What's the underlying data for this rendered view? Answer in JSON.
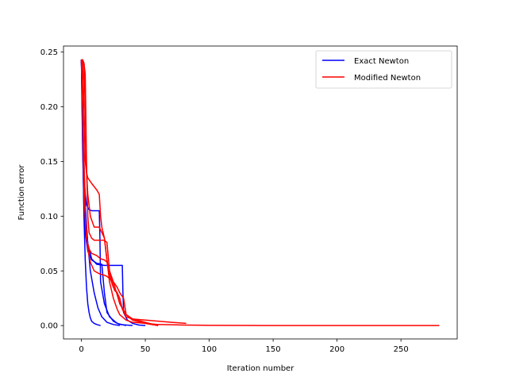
{
  "chart_data": {
    "type": "line",
    "title": "",
    "xlabel": "Iteration number",
    "ylabel": "Function error",
    "xlim": [
      -14,
      294
    ],
    "ylim": [
      -0.0122,
      0.2555
    ],
    "xticks": [
      0,
      50,
      100,
      150,
      200,
      250
    ],
    "yticks": [
      0.0,
      0.05,
      0.1,
      0.15,
      0.2,
      0.25
    ],
    "xtick_labels": [
      "0",
      "50",
      "100",
      "150",
      "200",
      "250"
    ],
    "ytick_labels": [
      "0.00",
      "0.05",
      "0.10",
      "0.15",
      "0.20",
      "0.25"
    ],
    "grid": false,
    "legend": {
      "position": "top-right",
      "entries": [
        {
          "name": "Exact Newton",
          "color": "#0000ff"
        },
        {
          "name": "Modified Newton",
          "color": "#ff0000"
        }
      ]
    },
    "series": [
      {
        "group": "Exact Newton",
        "color": "#0000ff",
        "x": [
          0,
          1,
          2,
          3,
          4,
          5,
          6,
          7,
          8,
          10,
          12,
          15
        ],
        "y": [
          0.243,
          0.17,
          0.1,
          0.06,
          0.035,
          0.02,
          0.012,
          0.007,
          0.004,
          0.002,
          0.001,
          0.0
        ]
      },
      {
        "group": "Exact Newton",
        "color": "#0000ff",
        "x": [
          0,
          1,
          2,
          3,
          5,
          7,
          10,
          13,
          16,
          20,
          25,
          30
        ],
        "y": [
          0.243,
          0.2,
          0.15,
          0.11,
          0.075,
          0.05,
          0.03,
          0.016,
          0.008,
          0.003,
          0.001,
          0.0
        ]
      },
      {
        "group": "Exact Newton",
        "color": "#0000ff",
        "x": [
          0,
          1,
          2,
          3,
          4,
          6,
          8,
          10,
          12,
          14,
          14.5,
          15,
          18,
          22,
          28,
          35
        ],
        "y": [
          0.243,
          0.18,
          0.14,
          0.12,
          0.11,
          0.106,
          0.105,
          0.105,
          0.105,
          0.105,
          0.08,
          0.04,
          0.02,
          0.008,
          0.002,
          0.0
        ]
      },
      {
        "group": "Exact Newton",
        "color": "#0000ff",
        "x": [
          0,
          1,
          2,
          3,
          5,
          8,
          12,
          18,
          25,
          32,
          32.5,
          33,
          36,
          40,
          45,
          50
        ],
        "y": [
          0.243,
          0.19,
          0.14,
          0.1,
          0.075,
          0.061,
          0.056,
          0.055,
          0.055,
          0.055,
          0.03,
          0.012,
          0.005,
          0.002,
          0.0005,
          0.0
        ]
      },
      {
        "group": "Exact Newton",
        "color": "#0000ff",
        "x": [
          0,
          1,
          2,
          3,
          5,
          8,
          12,
          16,
          18,
          20,
          25,
          30,
          40
        ],
        "y": [
          0.243,
          0.16,
          0.11,
          0.085,
          0.068,
          0.06,
          0.057,
          0.056,
          0.03,
          0.012,
          0.004,
          0.001,
          0.0
        ]
      },
      {
        "group": "Modified Newton",
        "color": "#ff0000",
        "x": [
          0,
          1,
          2,
          3,
          4,
          5,
          8,
          10,
          12,
          14,
          15,
          16,
          18,
          20,
          22,
          25,
          28,
          30,
          33,
          35,
          40,
          50,
          60,
          80,
          100,
          150,
          200,
          250,
          280
        ],
        "y": [
          0.243,
          0.242,
          0.2,
          0.15,
          0.14,
          0.135,
          0.13,
          0.127,
          0.124,
          0.12,
          0.1,
          0.09,
          0.08,
          0.06,
          0.04,
          0.025,
          0.015,
          0.01,
          0.007,
          0.005,
          0.003,
          0.002,
          0.001,
          0.0005,
          0.0002,
          0.0,
          0.0,
          0.0,
          0.0
        ]
      },
      {
        "group": "Modified Newton",
        "color": "#ff0000",
        "x": [
          0,
          1,
          2,
          3,
          4,
          5,
          7,
          10,
          14,
          16,
          18,
          20,
          22,
          25,
          28,
          30,
          35,
          40,
          50,
          60
        ],
        "y": [
          0.243,
          0.243,
          0.24,
          0.2,
          0.14,
          0.12,
          0.1,
          0.09,
          0.09,
          0.085,
          0.08,
          0.06,
          0.045,
          0.035,
          0.03,
          0.02,
          0.01,
          0.006,
          0.003,
          0.0
        ]
      },
      {
        "group": "Modified Newton",
        "color": "#ff0000",
        "x": [
          0,
          1,
          2,
          3,
          4,
          5,
          6,
          8,
          10,
          12,
          15,
          18,
          20,
          22,
          25,
          28,
          30,
          33,
          35,
          40,
          50,
          60,
          70,
          82
        ],
        "y": [
          0.243,
          0.242,
          0.24,
          0.23,
          0.15,
          0.1,
          0.085,
          0.08,
          0.078,
          0.078,
          0.078,
          0.078,
          0.076,
          0.05,
          0.04,
          0.035,
          0.03,
          0.025,
          0.01,
          0.006,
          0.005,
          0.004,
          0.003,
          0.002
        ]
      },
      {
        "group": "Modified Newton",
        "color": "#ff0000",
        "x": [
          0,
          1,
          2,
          4,
          6,
          8,
          10,
          12,
          15,
          18,
          20,
          22,
          24,
          26,
          28,
          30,
          32,
          35,
          40,
          45,
          50,
          60
        ],
        "y": [
          0.243,
          0.2,
          0.12,
          0.08,
          0.07,
          0.066,
          0.065,
          0.064,
          0.061,
          0.06,
          0.058,
          0.05,
          0.04,
          0.032,
          0.03,
          0.025,
          0.015,
          0.008,
          0.006,
          0.004,
          0.002,
          0.0
        ]
      },
      {
        "group": "Modified Newton",
        "color": "#ff0000",
        "x": [
          0,
          1,
          2,
          3,
          5,
          7,
          10,
          13,
          15,
          18,
          20,
          25,
          30,
          35,
          40,
          50,
          60
        ],
        "y": [
          0.243,
          0.2,
          0.15,
          0.1,
          0.07,
          0.058,
          0.05,
          0.048,
          0.047,
          0.046,
          0.045,
          0.04,
          0.02,
          0.01,
          0.005,
          0.002,
          0.0
        ]
      }
    ]
  }
}
